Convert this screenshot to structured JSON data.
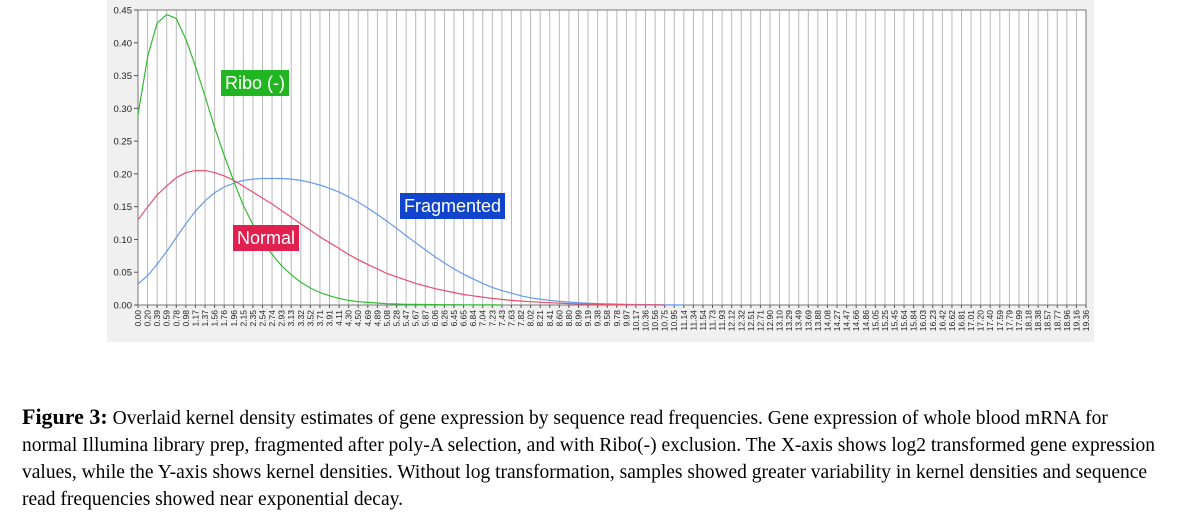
{
  "chart_data": {
    "type": "line",
    "title": "",
    "xlabel": "",
    "ylabel": "",
    "ylim": [
      0,
      0.45
    ],
    "xlim": [
      0,
      19.36
    ],
    "y_ticks": [
      "0.00",
      "0.05",
      "0.10",
      "0.15",
      "0.20",
      "0.25",
      "0.30",
      "0.35",
      "0.40",
      "0.45"
    ],
    "x_tick_labels": [
      "0.00",
      "0.20",
      "0.39",
      "0.59",
      "0.78",
      "0.98",
      "1.17",
      "1.37",
      "1.56",
      "1.76",
      "1.96",
      "2.15",
      "2.35",
      "2.54",
      "2.74",
      "2.93",
      "3.13",
      "3.32",
      "3.52",
      "3.71",
      "3.91",
      "4.11",
      "4.30",
      "4.50",
      "4.69",
      "4.89",
      "5.08",
      "5.28",
      "5.47",
      "5.67",
      "5.87",
      "6.06",
      "6.26",
      "6.45",
      "6.65",
      "6.84",
      "7.04",
      "7.23",
      "7.43",
      "7.63",
      "7.82",
      "8.02",
      "8.21",
      "8.41",
      "8.60",
      "8.80",
      "8.99",
      "9.19",
      "9.38",
      "9.58",
      "9.78",
      "9.97",
      "10.17",
      "10.36",
      "10.56",
      "10.75",
      "10.95",
      "11.14",
      "11.34",
      "11.54",
      "11.73",
      "11.93",
      "12.12",
      "12.32",
      "12.51",
      "12.71",
      "12.90",
      "13.10",
      "13.29",
      "13.49",
      "13.69",
      "13.88",
      "14.08",
      "14.27",
      "14.47",
      "14.66",
      "14.86",
      "15.05",
      "15.25",
      "15.45",
      "15.64",
      "15.84",
      "16.03",
      "16.23",
      "16.42",
      "16.62",
      "16.81",
      "17.01",
      "17.20",
      "17.40",
      "17.59",
      "17.79",
      "17.99",
      "18.18",
      "18.38",
      "18.57",
      "18.77",
      "18.96",
      "19.16",
      "19.36"
    ],
    "grid": true,
    "series": [
      {
        "name": "Ribo (-)",
        "color": "#33bb33",
        "label_bg": "#22b522",
        "x": [
          0.0,
          0.2,
          0.39,
          0.59,
          0.78,
          0.98,
          1.17,
          1.37,
          1.56,
          1.76,
          1.96,
          2.15,
          2.35,
          2.54,
          2.74,
          2.93,
          3.13,
          3.32,
          3.52,
          3.71,
          3.91,
          4.11,
          4.3,
          4.5,
          4.69,
          4.89,
          5.08,
          5.28,
          5.47,
          5.67,
          5.87,
          6.06,
          6.26,
          6.45,
          6.65,
          6.84,
          7.04,
          7.23,
          7.43
        ],
        "values": [
          0.29,
          0.38,
          0.43,
          0.443,
          0.437,
          0.405,
          0.365,
          0.318,
          0.272,
          0.228,
          0.188,
          0.152,
          0.122,
          0.097,
          0.077,
          0.06,
          0.046,
          0.035,
          0.026,
          0.019,
          0.014,
          0.01,
          0.007,
          0.005,
          0.004,
          0.003,
          0.002,
          0.0015,
          0.001,
          0.001,
          0.0008,
          0.0006,
          0.0005,
          0.0004,
          0.0003,
          0.0002,
          0.0001,
          0.0001,
          0.0
        ]
      },
      {
        "name": "Normal",
        "color": "#e8506e",
        "label_bg": "#e0204e",
        "x": [
          0.0,
          0.2,
          0.39,
          0.59,
          0.78,
          0.98,
          1.17,
          1.37,
          1.56,
          1.76,
          1.96,
          2.15,
          2.35,
          2.54,
          2.74,
          2.93,
          3.13,
          3.32,
          3.52,
          3.71,
          3.91,
          4.11,
          4.3,
          4.5,
          4.69,
          4.89,
          5.08,
          5.28,
          5.47,
          5.67,
          5.87,
          6.06,
          6.26,
          6.45,
          6.65,
          6.84,
          7.04,
          7.23,
          7.43,
          7.63,
          7.82,
          8.02,
          8.21,
          8.41,
          8.6,
          8.8,
          8.99,
          9.19,
          9.38,
          9.58,
          9.78,
          9.97,
          10.17,
          10.36,
          10.56,
          10.75
        ],
        "values": [
          0.13,
          0.15,
          0.168,
          0.182,
          0.194,
          0.202,
          0.205,
          0.205,
          0.202,
          0.197,
          0.19,
          0.181,
          0.172,
          0.163,
          0.154,
          0.144,
          0.134,
          0.124,
          0.114,
          0.104,
          0.095,
          0.086,
          0.077,
          0.069,
          0.062,
          0.055,
          0.048,
          0.043,
          0.038,
          0.033,
          0.029,
          0.025,
          0.022,
          0.019,
          0.016,
          0.014,
          0.012,
          0.01,
          0.0085,
          0.007,
          0.006,
          0.005,
          0.0042,
          0.0035,
          0.0028,
          0.0022,
          0.0017,
          0.0013,
          0.001,
          0.0008,
          0.0006,
          0.0004,
          0.0003,
          0.0002,
          0.0001,
          0.0
        ]
      },
      {
        "name": "Fragmented",
        "color": "#6699ee",
        "label_bg": "#1144cc",
        "x": [
          0.0,
          0.2,
          0.39,
          0.59,
          0.78,
          0.98,
          1.17,
          1.37,
          1.56,
          1.76,
          1.96,
          2.15,
          2.35,
          2.54,
          2.74,
          2.93,
          3.13,
          3.32,
          3.52,
          3.71,
          3.91,
          4.11,
          4.3,
          4.5,
          4.69,
          4.89,
          5.08,
          5.28,
          5.47,
          5.67,
          5.87,
          6.06,
          6.26,
          6.45,
          6.65,
          6.84,
          7.04,
          7.23,
          7.43,
          7.63,
          7.82,
          8.02,
          8.21,
          8.41,
          8.6,
          8.8,
          8.99,
          9.19,
          9.38,
          9.58,
          9.78,
          9.97,
          10.17,
          10.36,
          10.56,
          10.75,
          10.95,
          11.14
        ],
        "values": [
          0.032,
          0.045,
          0.062,
          0.082,
          0.103,
          0.124,
          0.143,
          0.159,
          0.171,
          0.18,
          0.186,
          0.19,
          0.192,
          0.193,
          0.193,
          0.193,
          0.192,
          0.19,
          0.187,
          0.183,
          0.178,
          0.172,
          0.165,
          0.157,
          0.148,
          0.138,
          0.128,
          0.117,
          0.106,
          0.095,
          0.084,
          0.074,
          0.064,
          0.055,
          0.047,
          0.04,
          0.033,
          0.027,
          0.022,
          0.018,
          0.014,
          0.011,
          0.009,
          0.007,
          0.0055,
          0.0045,
          0.0035,
          0.0028,
          0.0022,
          0.0017,
          0.0013,
          0.001,
          0.0008,
          0.0006,
          0.0004,
          0.0003,
          0.0001,
          0.0
        ]
      }
    ],
    "annotations": [
      {
        "series": "Ribo (-)",
        "text": "Ribo (-)"
      },
      {
        "series": "Normal",
        "text": "Normal"
      },
      {
        "series": "Fragmented",
        "text": "Fragmented"
      }
    ]
  },
  "caption": {
    "figure_label": "Figure 3:",
    "text": " Overlaid kernel density estimates of gene expression by sequence read frequencies. Gene expression of whole blood mRNA for normal Illumina library prep, fragmented after poly-A selection, and with Ribo(-) exclusion.  The X-axis shows log2 transformed gene expression values, while the Y-axis shows kernel densities.  Without log transformation, samples showed greater variability in kernel densities and sequence read frequencies showed near exponential decay."
  }
}
